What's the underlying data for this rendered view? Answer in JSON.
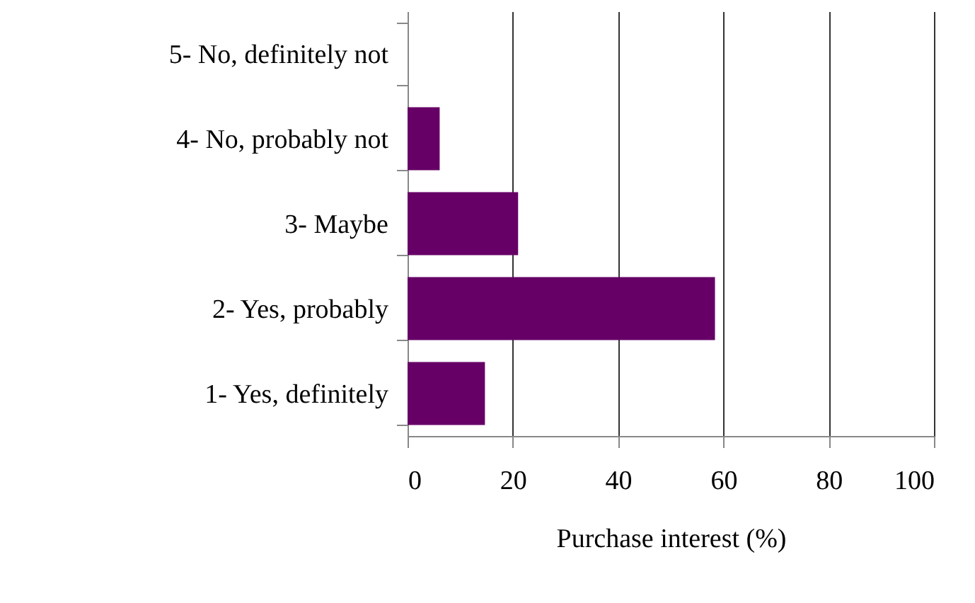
{
  "chart_data": {
    "type": "bar",
    "orientation": "horizontal",
    "xlabel": "Purchase interest (%)",
    "categories": [
      "5- No, definitely not",
      "4- No, probably not",
      "3- Maybe",
      "2- Yes, probably",
      "1- Yes, definitely"
    ],
    "values": [
      0,
      6.1,
      21,
      58.4,
      14.7
    ],
    "color": "#660066",
    "xlim": [
      0,
      100
    ],
    "xticks": [
      0,
      20,
      40,
      60,
      80,
      100
    ],
    "grid": "x"
  }
}
